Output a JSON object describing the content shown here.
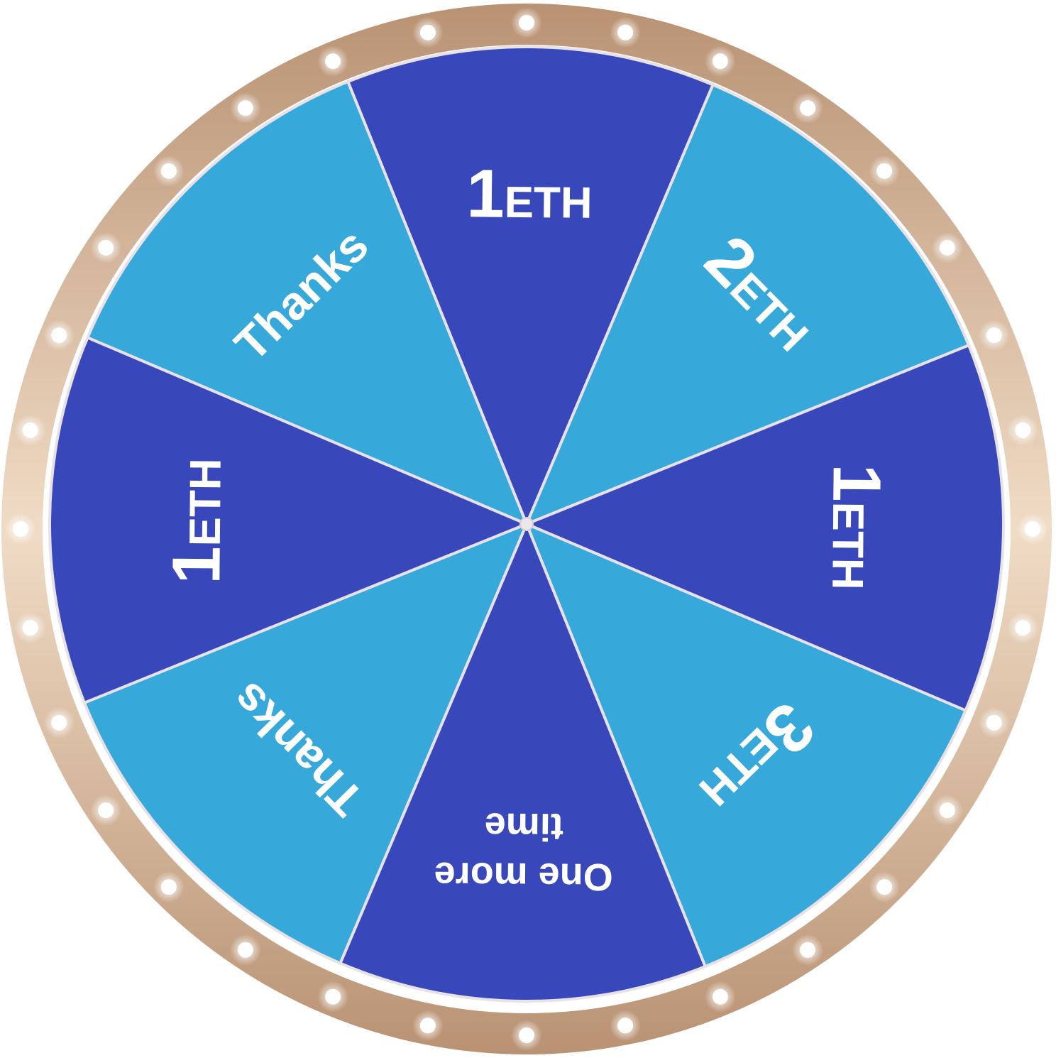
{
  "wheel": {
    "colors": {
      "rim_light": "#f0dcc6",
      "rim_dark": "#b99273",
      "separator": "#e8e2e6",
      "hub": "#ece7ea",
      "bulb": "#ffffff"
    },
    "bulb_count": 32,
    "segments": [
      {
        "big": "1",
        "small": "ETH",
        "color": "#3848bb"
      },
      {
        "big": "2",
        "small": "ETH",
        "color": "#37a8da"
      },
      {
        "big": "1",
        "small": "ETH",
        "color": "#3848bb"
      },
      {
        "big": "3",
        "small": "ETH",
        "color": "#37a8da"
      },
      {
        "line1": "One  more",
        "line2": "time",
        "color": "#3848bb"
      },
      {
        "label": "Thanks",
        "color": "#37a8da"
      },
      {
        "big": "1",
        "small": "ETH",
        "color": "#3848bb"
      },
      {
        "label": "Thanks",
        "color": "#37a8da"
      }
    ]
  }
}
